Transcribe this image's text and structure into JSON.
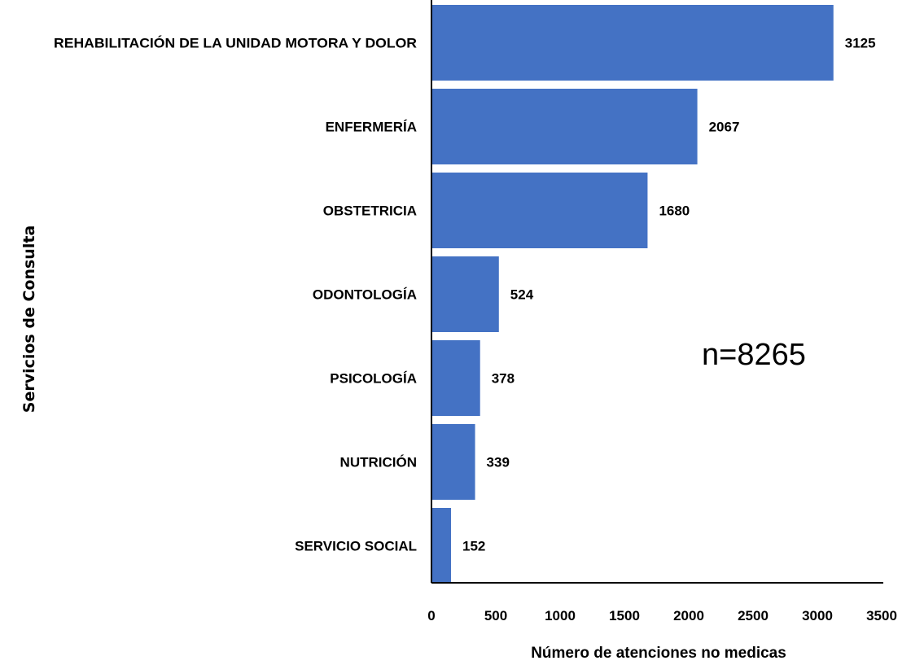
{
  "chart_data": {
    "type": "bar",
    "orientation": "horizontal",
    "categories": [
      "REHABILITACIÓN DE LA UNIDAD MOTORA Y DOLOR",
      "ENFERMERÍA",
      "OBSTETRICIA",
      "ODONTOLOGÍA",
      "PSICOLOGÍA",
      "NUTRICIÓN",
      "SERVICIO SOCIAL"
    ],
    "values": [
      3125,
      2067,
      1680,
      524,
      378,
      339,
      152
    ],
    "xlabel": "Número de atenciones no medicas",
    "ylabel": "Servicios de Consulta",
    "xlim": [
      0,
      3500
    ],
    "xticks": [
      0,
      500,
      1000,
      1500,
      2000,
      2500,
      3000,
      3500
    ],
    "annotation": "n=8265",
    "grid": false,
    "legend": "none",
    "bar_color": "#4472C4",
    "axis_color": "#000000"
  }
}
